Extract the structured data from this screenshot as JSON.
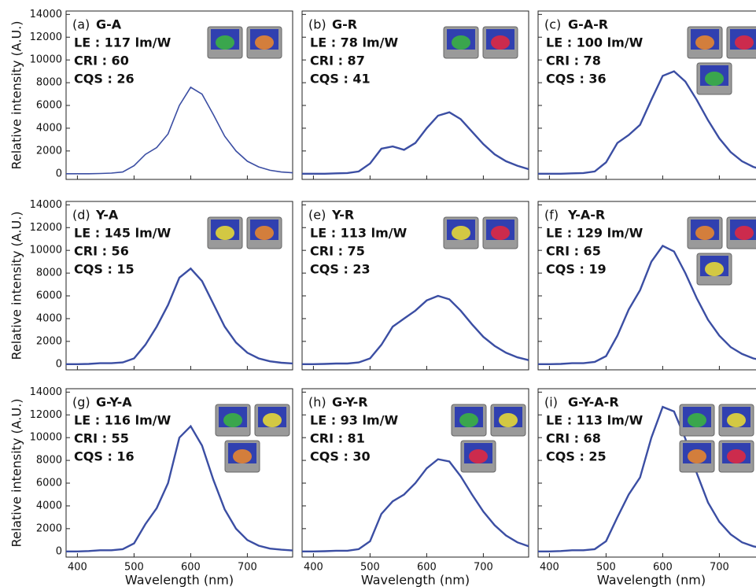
{
  "chart_data": [
    {
      "type": "line",
      "panel_label": "(a)",
      "title": "G-A",
      "annotations": [
        "LE : 117 lm/W",
        "CRI : 60",
        "CQS : 26"
      ],
      "ylabel": "Relative intensity (A.U.)",
      "color": "#3b4ea3",
      "x": [
        380,
        400,
        420,
        440,
        460,
        480,
        500,
        520,
        540,
        560,
        580,
        600,
        620,
        640,
        660,
        680,
        700,
        720,
        740,
        760,
        780
      ],
      "values": [
        0,
        0,
        0,
        20,
        50,
        150,
        700,
        1700,
        2300,
        3500,
        6000,
        7600,
        7000,
        5200,
        3300,
        2000,
        1100,
        600,
        300,
        150,
        80
      ],
      "xlim": [
        380,
        780
      ],
      "ylim": [
        -500,
        14300
      ],
      "xticks": [
        400,
        500,
        600,
        700
      ],
      "yticks": [
        0,
        2000,
        4000,
        6000,
        8000,
        10000,
        12000,
        14000
      ]
    },
    {
      "type": "line",
      "panel_label": "(b)",
      "title": "G-R",
      "annotations": [
        "LE : 78 lm/W",
        "CRI : 87",
        "CQS : 41"
      ],
      "color": "#3b4ea3",
      "x": [
        380,
        400,
        420,
        440,
        460,
        480,
        500,
        520,
        540,
        560,
        580,
        600,
        620,
        640,
        660,
        680,
        700,
        720,
        740,
        760,
        780
      ],
      "values": [
        0,
        0,
        0,
        30,
        60,
        200,
        900,
        2200,
        2400,
        2100,
        2700,
        4000,
        5100,
        5400,
        4800,
        3700,
        2600,
        1700,
        1100,
        700,
        400
      ],
      "xlim": [
        380,
        780
      ],
      "ylim": [
        -500,
        14300
      ],
      "xticks": [
        400,
        500,
        600,
        700
      ],
      "yticks": [
        0,
        2000,
        4000,
        6000,
        8000,
        10000,
        12000,
        14000
      ]
    },
    {
      "type": "line",
      "panel_label": "(c)",
      "title": "G-A-R",
      "annotations": [
        "LE : 100 lm/W",
        "CRI : 78",
        "CQS : 36"
      ],
      "color": "#3b4ea3",
      "x": [
        380,
        400,
        420,
        440,
        460,
        480,
        500,
        520,
        540,
        560,
        580,
        600,
        620,
        640,
        660,
        680,
        700,
        720,
        740,
        760,
        780
      ],
      "values": [
        0,
        0,
        0,
        30,
        60,
        200,
        1000,
        2700,
        3400,
        4300,
        6500,
        8600,
        9000,
        8100,
        6500,
        4700,
        3100,
        1900,
        1100,
        600,
        300
      ],
      "xlim": [
        380,
        780
      ],
      "ylim": [
        -500,
        14300
      ],
      "xticks": [
        400,
        500,
        600,
        700
      ],
      "yticks": [
        0,
        2000,
        4000,
        6000,
        8000,
        10000,
        12000,
        14000
      ]
    },
    {
      "type": "line",
      "panel_label": "(d)",
      "title": "Y-A",
      "annotations": [
        "LE : 145 lm/W",
        "CRI : 56",
        "CQS : 15"
      ],
      "ylabel": "Relative intensity (A.U.)",
      "color": "#3b4ea3",
      "x": [
        380,
        400,
        420,
        440,
        460,
        480,
        500,
        520,
        540,
        560,
        580,
        600,
        620,
        640,
        660,
        680,
        700,
        720,
        740,
        760,
        780
      ],
      "values": [
        0,
        0,
        20,
        80,
        80,
        150,
        500,
        1700,
        3300,
        5200,
        7600,
        8400,
        7300,
        5300,
        3300,
        1900,
        1000,
        500,
        250,
        120,
        60
      ],
      "xlim": [
        380,
        780
      ],
      "ylim": [
        -500,
        14300
      ],
      "xticks": [
        400,
        500,
        600,
        700
      ],
      "yticks": [
        0,
        2000,
        4000,
        6000,
        8000,
        10000,
        12000,
        14000
      ]
    },
    {
      "type": "line",
      "panel_label": "(e)",
      "title": "Y-R",
      "annotations": [
        "LE : 113 lm/W",
        "CRI : 75",
        "CQS : 23"
      ],
      "color": "#3b4ea3",
      "x": [
        380,
        400,
        420,
        440,
        460,
        480,
        500,
        520,
        540,
        560,
        580,
        600,
        620,
        640,
        660,
        680,
        700,
        720,
        740,
        760,
        780
      ],
      "values": [
        0,
        0,
        20,
        50,
        50,
        150,
        500,
        1700,
        3300,
        4000,
        4700,
        5600,
        6000,
        5700,
        4700,
        3500,
        2400,
        1600,
        1000,
        600,
        350
      ],
      "xlim": [
        380,
        780
      ],
      "ylim": [
        -500,
        14300
      ],
      "xticks": [
        400,
        500,
        600,
        700
      ],
      "yticks": [
        0,
        2000,
        4000,
        6000,
        8000,
        10000,
        12000,
        14000
      ]
    },
    {
      "type": "line",
      "panel_label": "(f)",
      "title": "Y-A-R",
      "annotations": [
        "LE : 129 lm/W",
        "CRI : 65",
        "CQS : 19"
      ],
      "color": "#3b4ea3",
      "x": [
        380,
        400,
        420,
        440,
        460,
        480,
        500,
        520,
        540,
        560,
        580,
        600,
        620,
        640,
        660,
        680,
        700,
        720,
        740,
        760,
        780
      ],
      "values": [
        0,
        0,
        20,
        80,
        80,
        200,
        700,
        2500,
        4800,
        6500,
        9000,
        10400,
        9900,
        8000,
        5800,
        3900,
        2500,
        1500,
        900,
        500,
        300
      ],
      "xlim": [
        380,
        780
      ],
      "ylim": [
        -500,
        14300
      ],
      "xticks": [
        400,
        500,
        600,
        700
      ],
      "yticks": [
        0,
        2000,
        4000,
        6000,
        8000,
        10000,
        12000,
        14000
      ]
    },
    {
      "type": "line",
      "panel_label": "(g)",
      "title": "G-Y-A",
      "annotations": [
        "LE : 116 lm/W",
        "CRI : 55",
        "CQS : 16"
      ],
      "ylabel": "Relative intensity (A.U.)",
      "xlabel": "Wavelength (nm)",
      "color": "#3b4ea3",
      "x": [
        380,
        400,
        420,
        440,
        460,
        480,
        500,
        520,
        540,
        560,
        580,
        600,
        620,
        640,
        660,
        680,
        700,
        720,
        740,
        760,
        780
      ],
      "values": [
        0,
        0,
        30,
        100,
        100,
        200,
        700,
        2400,
        3800,
        6000,
        10000,
        11000,
        9300,
        6300,
        3700,
        2000,
        1000,
        500,
        250,
        150,
        80
      ],
      "xlim": [
        380,
        780
      ],
      "ylim": [
        -500,
        14300
      ],
      "xticks": [
        400,
        500,
        600,
        700
      ],
      "yticks": [
        0,
        2000,
        4000,
        6000,
        8000,
        10000,
        12000,
        14000
      ]
    },
    {
      "type": "line",
      "panel_label": "(h)",
      "title": "G-Y-R",
      "annotations": [
        "LE : 93 lm/W",
        "CRI : 81",
        "CQS : 30"
      ],
      "xlabel": "Wavelength (nm)",
      "color": "#3b4ea3",
      "x": [
        380,
        400,
        420,
        440,
        460,
        480,
        500,
        520,
        540,
        560,
        580,
        600,
        620,
        640,
        660,
        680,
        700,
        720,
        740,
        760,
        780
      ],
      "values": [
        0,
        0,
        20,
        60,
        60,
        200,
        900,
        3300,
        4400,
        5000,
        6000,
        7300,
        8100,
        7900,
        6600,
        5000,
        3500,
        2300,
        1400,
        800,
        450
      ],
      "xlim": [
        380,
        780
      ],
      "ylim": [
        -500,
        14300
      ],
      "xticks": [
        400,
        500,
        600,
        700
      ],
      "yticks": [
        0,
        2000,
        4000,
        6000,
        8000,
        10000,
        12000,
        14000
      ]
    },
    {
      "type": "line",
      "panel_label": "(i)",
      "title": "G-Y-A-R",
      "annotations": [
        "LE : 113 lm/W",
        "CRI : 68",
        "CQS : 25"
      ],
      "xlabel": "Wavelength (nm)",
      "color": "#3b4ea3",
      "x": [
        380,
        400,
        420,
        440,
        460,
        480,
        500,
        520,
        540,
        560,
        580,
        600,
        620,
        640,
        660,
        680,
        700,
        720,
        740,
        760,
        780
      ],
      "values": [
        0,
        0,
        30,
        100,
        100,
        200,
        900,
        3000,
        5000,
        6500,
        10000,
        12700,
        12300,
        9900,
        6900,
        4300,
        2600,
        1500,
        800,
        450,
        250
      ],
      "xlim": [
        380,
        780
      ],
      "ylim": [
        -500,
        14300
      ],
      "xticks": [
        400,
        500,
        600,
        700
      ],
      "yticks": [
        0,
        2000,
        4000,
        6000,
        8000,
        10000,
        12000,
        14000
      ]
    }
  ]
}
